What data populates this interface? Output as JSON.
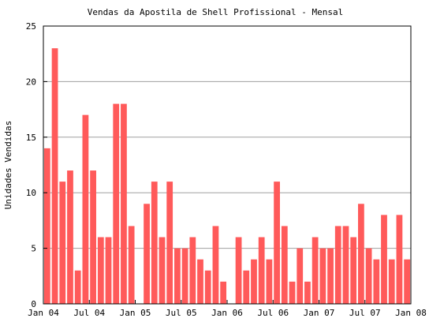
{
  "chart_data": {
    "type": "bar",
    "title": "Vendas da Apostila de Shell Profissional - Mensal",
    "xlabel": "",
    "ylabel": "Unidades Vendidas",
    "ylim": [
      0,
      25
    ],
    "yticks": [
      0,
      5,
      10,
      15,
      20,
      25
    ],
    "xlim": [
      "2004-01",
      "2008-01"
    ],
    "xticks": [
      {
        "date": "2004-01",
        "label": "Jan 04"
      },
      {
        "date": "2004-07",
        "label": "Jul 04"
      },
      {
        "date": "2005-01",
        "label": "Jan 05"
      },
      {
        "date": "2005-07",
        "label": "Jul 05"
      },
      {
        "date": "2006-01",
        "label": "Jan 06"
      },
      {
        "date": "2006-07",
        "label": "Jul 06"
      },
      {
        "date": "2007-01",
        "label": "Jan 07"
      },
      {
        "date": "2007-07",
        "label": "Jul 07"
      },
      {
        "date": "2008-01",
        "label": "Jan 08"
      }
    ],
    "grid": "horizontal",
    "bar_color": "#ff5a5a",
    "categories": [
      "2004-01",
      "2004-02",
      "2004-03",
      "2004-04",
      "2004-05",
      "2004-06",
      "2004-07",
      "2004-08",
      "2004-09",
      "2004-10",
      "2004-11",
      "2004-12",
      "2005-01",
      "2005-02",
      "2005-03",
      "2005-04",
      "2005-05",
      "2005-06",
      "2005-07",
      "2005-08",
      "2005-09",
      "2005-10",
      "2005-11",
      "2005-12",
      "2006-01",
      "2006-02",
      "2006-03",
      "2006-04",
      "2006-05",
      "2006-06",
      "2006-07",
      "2006-08",
      "2006-09",
      "2006-10",
      "2006-11",
      "2006-12",
      "2007-01",
      "2007-02",
      "2007-03",
      "2007-04",
      "2007-05",
      "2007-06",
      "2007-07",
      "2007-08",
      "2007-09",
      "2007-10",
      "2007-11",
      "2007-12"
    ],
    "values": [
      14,
      23,
      11,
      12,
      3,
      17,
      12,
      6,
      6,
      18,
      18,
      7,
      0,
      9,
      11,
      6,
      11,
      5,
      5,
      6,
      4,
      3,
      7,
      2,
      0,
      6,
      3,
      4,
      6,
      4,
      11,
      7,
      2,
      5,
      2,
      6,
      5,
      5,
      7,
      7,
      6,
      9,
      5,
      4,
      8,
      4,
      8,
      4
    ]
  }
}
